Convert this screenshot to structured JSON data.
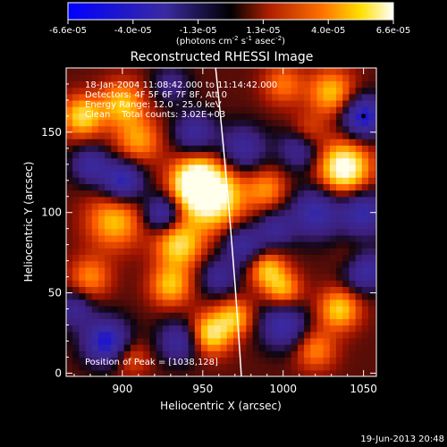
{
  "colorbar": {
    "ticks": [
      "-6.6e-05",
      "-4.0e-05",
      "-1.3e-05",
      "1.3e-05",
      "4.0e-05",
      "6.6e-05"
    ],
    "units_main": "(photons cm",
    "units_sup1": "-2",
    "units_mid": " s",
    "units_sup2": "-1",
    "units_end": " asec",
    "units_sup3": "-2",
    "units_close": ")",
    "stops": [
      "#0000ff",
      "#3a2aa0",
      "#000000",
      "#b02000",
      "#ff7000",
      "#ffe000",
      "#ffffff"
    ]
  },
  "chart_data": {
    "type": "heatmap",
    "title": "Reconstructed RHESSI Image",
    "xlabel": "Heliocentric X (arcsec)",
    "ylabel": "Heliocentric Y (arcsec)",
    "xlim": [
      865,
      1058
    ],
    "ylim": [
      -2,
      190
    ],
    "x_ticks": [
      900,
      950,
      1000,
      1050
    ],
    "y_ticks": [
      0,
      50,
      100,
      150
    ],
    "annotations": [
      "18-Jan-2004 11:08:42.000 to 11:14:42.000",
      "Detectors: 4F 5F 6F 7F 8F, Att 0",
      "Energy Range: 12.0 - 25.0 keV",
      "Clean    Total counts: 3.02E+03"
    ],
    "peak_label": "Position of Peak = [1038,128]",
    "peak": [
      1038,
      128
    ],
    "limb_x_at_ymin": 974,
    "limb_x_at_ymax": 958,
    "footer": "19-Jun-2013 20:48",
    "blobs": [
      {
        "x": 955,
        "y": 110,
        "w": 1.0,
        "s": 14
      },
      {
        "x": 945,
        "y": 120,
        "w": 0.8,
        "s": 10
      },
      {
        "x": 935,
        "y": 80,
        "w": 0.7,
        "s": 10
      },
      {
        "x": 895,
        "y": 95,
        "w": 0.6,
        "s": 12
      },
      {
        "x": 875,
        "y": 160,
        "w": 0.7,
        "s": 9
      },
      {
        "x": 900,
        "y": 168,
        "w": 0.6,
        "s": 10
      },
      {
        "x": 910,
        "y": 145,
        "w": 0.5,
        "s": 10
      },
      {
        "x": 930,
        "y": 55,
        "w": 0.6,
        "s": 9
      },
      {
        "x": 880,
        "y": 60,
        "w": 0.45,
        "s": 9
      },
      {
        "x": 955,
        "y": 25,
        "w": 0.75,
        "s": 9
      },
      {
        "x": 970,
        "y": 35,
        "w": 0.55,
        "s": 8
      },
      {
        "x": 1038,
        "y": 128,
        "w": 1.0,
        "s": 11
      },
      {
        "x": 1030,
        "y": 175,
        "w": 0.6,
        "s": 10
      },
      {
        "x": 1015,
        "y": 150,
        "w": 0.35,
        "s": 8
      },
      {
        "x": 990,
        "y": 65,
        "w": 0.6,
        "s": 8
      },
      {
        "x": 1000,
        "y": 52,
        "w": 0.55,
        "s": 8
      },
      {
        "x": 1035,
        "y": 40,
        "w": 0.65,
        "s": 9
      },
      {
        "x": 1020,
        "y": 15,
        "w": 0.45,
        "s": 9
      },
      {
        "x": 1045,
        "y": 70,
        "w": 0.35,
        "s": 8
      },
      {
        "x": 990,
        "y": 115,
        "w": 0.45,
        "s": 9
      },
      {
        "x": 1000,
        "y": 180,
        "w": 0.4,
        "s": 9
      },
      {
        "x": 905,
        "y": 10,
        "w": 0.35,
        "s": 8
      },
      {
        "x": 880,
        "y": 130,
        "w": -0.6,
        "s": 8
      },
      {
        "x": 900,
        "y": 120,
        "w": -0.8,
        "s": 9
      },
      {
        "x": 890,
        "y": 20,
        "w": -0.9,
        "s": 10
      },
      {
        "x": 925,
        "y": 100,
        "w": -0.7,
        "s": 8
      },
      {
        "x": 945,
        "y": 150,
        "w": -0.6,
        "s": 9
      },
      {
        "x": 975,
        "y": 140,
        "w": -0.6,
        "s": 10
      },
      {
        "x": 1020,
        "y": 100,
        "w": -0.7,
        "s": 11
      },
      {
        "x": 1050,
        "y": 100,
        "w": -0.7,
        "s": 10
      },
      {
        "x": 1050,
        "y": 160,
        "w": -0.9,
        "s": 9
      },
      {
        "x": 1050,
        "y": 65,
        "w": -0.85,
        "s": 9
      },
      {
        "x": 975,
        "y": 80,
        "w": -0.6,
        "s": 9
      },
      {
        "x": 960,
        "y": 60,
        "w": -0.5,
        "s": 8
      },
      {
        "x": 1000,
        "y": 30,
        "w": -0.7,
        "s": 10
      },
      {
        "x": 935,
        "y": 20,
        "w": -0.6,
        "s": 9
      },
      {
        "x": 1010,
        "y": 140,
        "w": -0.55,
        "s": 9
      },
      {
        "x": 995,
        "y": 90,
        "w": -0.5,
        "s": 8
      },
      {
        "x": 870,
        "y": 40,
        "w": -0.5,
        "s": 8
      },
      {
        "x": 930,
        "y": 180,
        "w": -0.4,
        "s": 8
      }
    ]
  }
}
